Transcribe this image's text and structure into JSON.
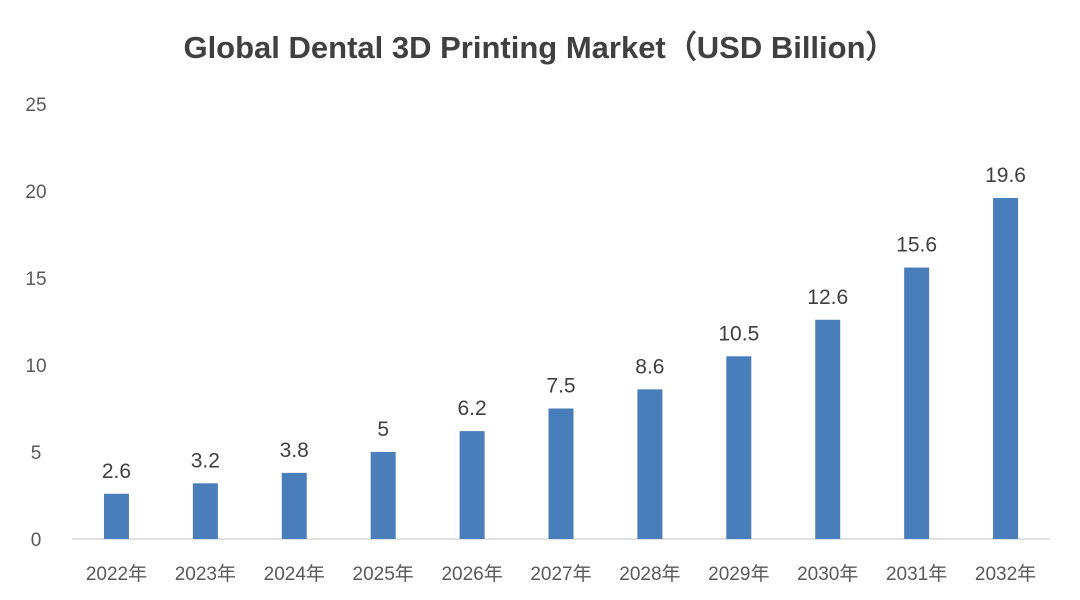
{
  "chart_data": {
    "type": "bar",
    "title": "Global Dental 3D Printing Market（USD Billion）",
    "categories": [
      "2022年",
      "2023年",
      "2024年",
      "2025年",
      "2026年",
      "2027年",
      "2028年",
      "2029年",
      "2030年",
      "2031年",
      "2032年"
    ],
    "values": [
      2.6,
      3.2,
      3.8,
      5,
      6.2,
      7.5,
      8.6,
      10.5,
      12.6,
      15.6,
      19.6
    ],
    "value_labels": [
      "2.6",
      "3.2",
      "3.8",
      "5",
      "6.2",
      "7.5",
      "8.6",
      "10.5",
      "12.6",
      "15.6",
      "19.6"
    ],
    "y_ticks": [
      "0",
      "5",
      "10",
      "15",
      "20",
      "25"
    ],
    "ylim": [
      0,
      25
    ],
    "grid": false,
    "bar_color": "#4a7ebb",
    "xlabel": "",
    "ylabel": ""
  }
}
